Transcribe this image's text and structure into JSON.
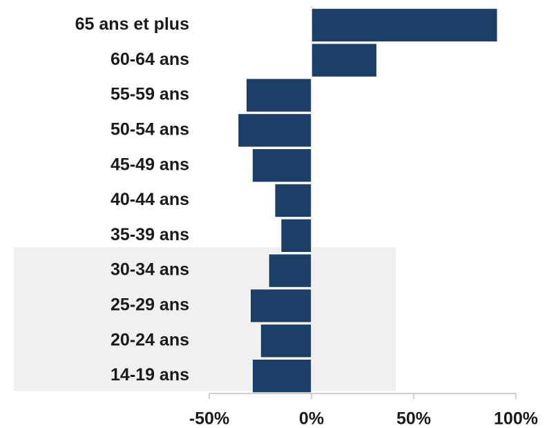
{
  "chart_data": {
    "type": "hbar",
    "categories": [
      "65 ans et plus",
      "60-64 ans",
      "55-59 ans",
      "50-54 ans",
      "45-49 ans",
      "40-44 ans",
      "35-39 ans",
      "30-34 ans",
      "25-29 ans",
      "20-24 ans",
      "14-19 ans"
    ],
    "values": [
      91,
      32,
      -32,
      -36,
      -29,
      -18,
      -15,
      -21,
      -30,
      -25,
      -29
    ],
    "color": "#1b3f66",
    "xlim": [
      -50,
      100
    ],
    "xticks": [
      {
        "value": -50,
        "label": "-50%"
      },
      {
        "value": 0,
        "label": "0%"
      },
      {
        "value": 50,
        "label": "50%"
      },
      {
        "value": 100,
        "label": "100%"
      }
    ]
  }
}
